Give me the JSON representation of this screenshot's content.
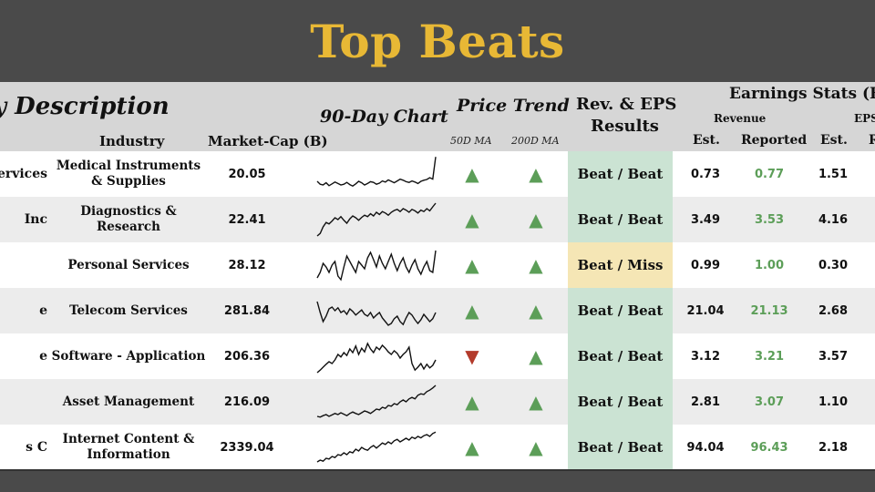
{
  "title": "Top Beats",
  "header": {
    "company_description": "y Description",
    "industry": "Industry",
    "market_cap": "Market-Cap (B)",
    "chart": "90-Day Chart",
    "price_trend": "Price Trend",
    "ma50": "50D MA",
    "ma200": "200D MA",
    "results_line1": "Rev. & EPS",
    "results_line2": "Results",
    "earnings_stats": "Earnings Stats (B)",
    "revenue": "Revenue",
    "eps": "EPS",
    "est": "Est.",
    "reported": "Reported",
    "eps_est": "Est.",
    "eps_reported_partial": "R"
  },
  "colors": {
    "title": "#e8b835",
    "up": "#5c9e58",
    "down": "#b33b2b",
    "beat_beat_bg": "#cbe3d3",
    "beat_miss_bg": "#f5e6b5",
    "reported_green": "#5c9e58"
  },
  "chart_data": {
    "type": "table",
    "rows": [
      {
        "company": "Services",
        "industry": "Medical Instruments & Supplies",
        "market_cap": "20.05",
        "ma50": "up",
        "ma200": "up",
        "result": "Beat / Beat",
        "rev_est": "0.73",
        "rev_reported": "0.77",
        "eps_est": "1.51",
        "spark": [
          0.3,
          0.22,
          0.2,
          0.26,
          0.18,
          0.23,
          0.28,
          0.24,
          0.2,
          0.22,
          0.27,
          0.21,
          0.17,
          0.23,
          0.3,
          0.26,
          0.2,
          0.24,
          0.29,
          0.27,
          0.22,
          0.25,
          0.31,
          0.28,
          0.34,
          0.3,
          0.26,
          0.31,
          0.36,
          0.33,
          0.29,
          0.27,
          0.31,
          0.28,
          0.24,
          0.3,
          0.33,
          0.35,
          0.4,
          0.36,
          0.97
        ]
      },
      {
        "company": "Inc",
        "industry": "Diagnostics & Research",
        "market_cap": "22.41",
        "ma50": "up",
        "ma200": "up",
        "result": "Beat / Beat",
        "rev_est": "3.49",
        "rev_reported": "3.53",
        "eps_est": "4.16",
        "spark": [
          0.05,
          0.12,
          0.3,
          0.42,
          0.38,
          0.46,
          0.55,
          0.5,
          0.58,
          0.48,
          0.4,
          0.52,
          0.6,
          0.55,
          0.48,
          0.56,
          0.62,
          0.58,
          0.66,
          0.6,
          0.7,
          0.64,
          0.72,
          0.68,
          0.62,
          0.7,
          0.75,
          0.78,
          0.72,
          0.8,
          0.76,
          0.7,
          0.78,
          0.74,
          0.68,
          0.76,
          0.72,
          0.8,
          0.74,
          0.85,
          0.95
        ]
      },
      {
        "company": "",
        "industry": "Personal Services",
        "market_cap": "28.12",
        "ma50": "up",
        "ma200": "up",
        "result": "Beat / Miss",
        "rev_est": "0.99",
        "rev_reported": "1.00",
        "eps_est": "0.30",
        "spark": [
          0.15,
          0.3,
          0.55,
          0.45,
          0.3,
          0.5,
          0.6,
          0.2,
          0.1,
          0.45,
          0.75,
          0.6,
          0.45,
          0.3,
          0.6,
          0.5,
          0.4,
          0.7,
          0.85,
          0.65,
          0.45,
          0.75,
          0.55,
          0.4,
          0.6,
          0.8,
          0.55,
          0.35,
          0.55,
          0.7,
          0.45,
          0.3,
          0.5,
          0.65,
          0.4,
          0.25,
          0.45,
          0.6,
          0.35,
          0.3,
          0.9
        ]
      },
      {
        "company": "e",
        "industry": "Telecom Services",
        "market_cap": "281.84",
        "ma50": "up",
        "ma200": "up",
        "result": "Beat / Beat",
        "rev_est": "21.04",
        "rev_reported": "21.13",
        "eps_est": "2.68",
        "spark": [
          0.75,
          0.45,
          0.2,
          0.35,
          0.55,
          0.6,
          0.5,
          0.58,
          0.45,
          0.5,
          0.4,
          0.55,
          0.48,
          0.38,
          0.45,
          0.52,
          0.4,
          0.35,
          0.45,
          0.3,
          0.38,
          0.45,
          0.3,
          0.2,
          0.1,
          0.15,
          0.28,
          0.35,
          0.2,
          0.12,
          0.3,
          0.45,
          0.38,
          0.25,
          0.15,
          0.25,
          0.4,
          0.3,
          0.2,
          0.28,
          0.45
        ]
      },
      {
        "company": "e",
        "industry": "Software - Application",
        "market_cap": "206.36",
        "ma50": "down",
        "ma200": "up",
        "result": "Beat / Beat",
        "rev_est": "3.12",
        "rev_reported": "3.21",
        "eps_est": "3.57",
        "spark": [
          0.05,
          0.12,
          0.2,
          0.28,
          0.35,
          0.3,
          0.4,
          0.55,
          0.48,
          0.6,
          0.52,
          0.7,
          0.6,
          0.78,
          0.55,
          0.72,
          0.62,
          0.85,
          0.7,
          0.6,
          0.75,
          0.68,
          0.8,
          0.72,
          0.62,
          0.55,
          0.65,
          0.58,
          0.45,
          0.55,
          0.62,
          0.75,
          0.3,
          0.12,
          0.2,
          0.3,
          0.15,
          0.28,
          0.18,
          0.25,
          0.4
        ]
      },
      {
        "company": "",
        "industry": "Asset Management",
        "market_cap": "216.09",
        "ma50": "up",
        "ma200": "up",
        "result": "Beat / Beat",
        "rev_est": "2.81",
        "rev_reported": "3.07",
        "eps_est": "1.10",
        "spark": [
          0.1,
          0.08,
          0.12,
          0.15,
          0.1,
          0.14,
          0.18,
          0.15,
          0.2,
          0.16,
          0.12,
          0.18,
          0.22,
          0.18,
          0.15,
          0.2,
          0.25,
          0.22,
          0.18,
          0.24,
          0.3,
          0.28,
          0.35,
          0.32,
          0.4,
          0.38,
          0.45,
          0.42,
          0.5,
          0.55,
          0.5,
          0.58,
          0.62,
          0.58,
          0.68,
          0.72,
          0.7,
          0.78,
          0.82,
          0.88,
          0.95
        ]
      },
      {
        "company": "s C",
        "industry": "Internet Content & Information",
        "market_cap": "2339.04",
        "ma50": "up",
        "ma200": "up",
        "result": "Beat / Beat",
        "rev_est": "94.04",
        "rev_reported": "96.43",
        "eps_est": "2.18",
        "spark": [
          0.1,
          0.15,
          0.12,
          0.2,
          0.18,
          0.25,
          0.22,
          0.3,
          0.28,
          0.35,
          0.3,
          0.38,
          0.35,
          0.45,
          0.4,
          0.5,
          0.45,
          0.42,
          0.5,
          0.55,
          0.48,
          0.55,
          0.62,
          0.58,
          0.65,
          0.6,
          0.68,
          0.72,
          0.65,
          0.7,
          0.75,
          0.7,
          0.78,
          0.74,
          0.8,
          0.76,
          0.82,
          0.85,
          0.8,
          0.88,
          0.92
        ]
      }
    ]
  }
}
